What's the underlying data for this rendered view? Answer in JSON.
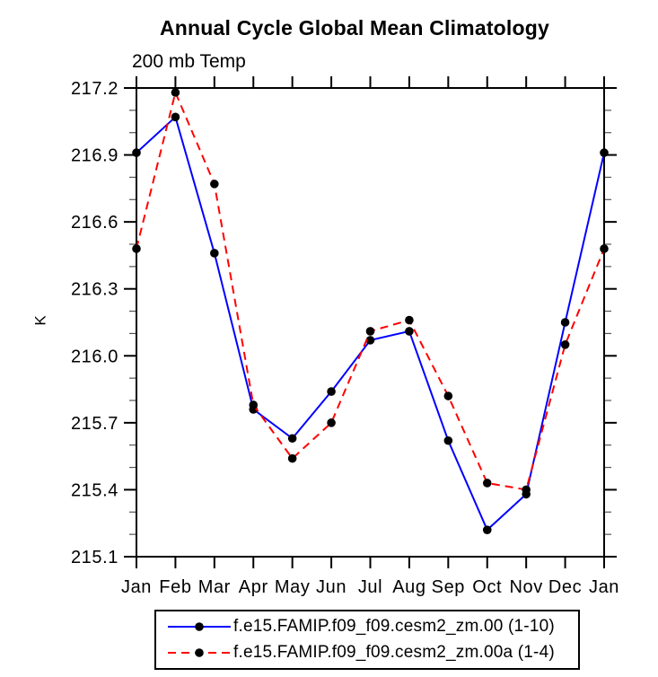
{
  "chart_data": {
    "type": "line",
    "title": "Annual Cycle Global Mean Climatology",
    "subtitle": "200 mb Temp",
    "ylabel": "K",
    "xlabel": "",
    "categories": [
      "Jan",
      "Feb",
      "Mar",
      "Apr",
      "May",
      "Jun",
      "Jul",
      "Aug",
      "Sep",
      "Oct",
      "Nov",
      "Dec",
      "Jan"
    ],
    "ylim": [
      215.1,
      217.2
    ],
    "yticks": [
      215.1,
      215.4,
      215.7,
      216.0,
      216.3,
      216.6,
      216.9,
      217.2
    ],
    "minor_tick_step": 0.1,
    "grid": false,
    "legend_position": "bottom",
    "frame_color": "#000000",
    "marker_color": "#000000",
    "series": [
      {
        "name": "f.e15.FAMIP.f09_f09.cesm2_zm.00 (1-10)",
        "color": "#0000ff",
        "style": "solid",
        "marker": "circle",
        "values": [
          216.91,
          217.07,
          216.46,
          215.76,
          215.63,
          215.84,
          216.07,
          216.11,
          215.62,
          215.22,
          215.38,
          216.15,
          216.91
        ]
      },
      {
        "name": "f.e15.FAMIP.f09_f09.cesm2_zm.00a (1-4)",
        "color": "#ff0000",
        "style": "dashed",
        "marker": "circle",
        "values": [
          216.48,
          217.18,
          216.77,
          215.78,
          215.54,
          215.7,
          216.11,
          216.16,
          215.82,
          215.43,
          215.4,
          216.05,
          216.48
        ]
      }
    ]
  }
}
